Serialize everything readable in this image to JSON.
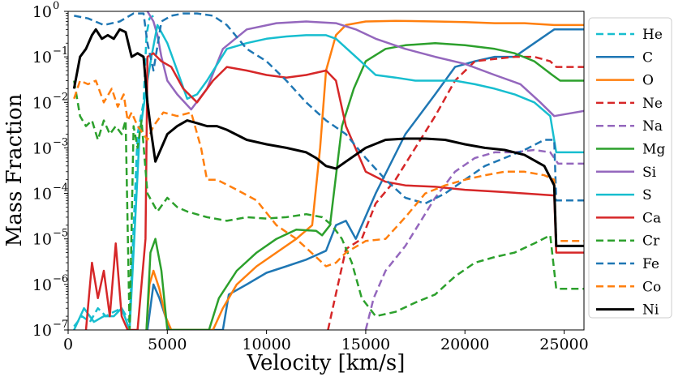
{
  "chart_data": {
    "type": "line",
    "xlabel": "Velocity [km/s]",
    "ylabel": "Mass Fraction",
    "xlim": [
      0,
      26000
    ],
    "ylim": [
      1e-07,
      1
    ],
    "yscale": "log",
    "grid": false,
    "legend_position": "right-outside",
    "x_ticks": [
      0,
      5000,
      10000,
      15000,
      20000,
      25000
    ],
    "x_tick_labels": [
      "0",
      "5000",
      "10000",
      "15000",
      "20000",
      "25000"
    ],
    "y_tick_exponents": [
      -7,
      -6,
      -5,
      -4,
      -3,
      -2,
      -1,
      0
    ],
    "y_tick_labels": [
      "10",
      "10",
      "10",
      "10",
      "10",
      "10",
      "10",
      "10"
    ],
    "y_tick_sups": [
      "−7",
      "−6",
      "−5",
      "−4",
      "−3",
      "−2",
      "−1",
      "0"
    ],
    "series": [
      {
        "name": "He",
        "color": "#17becf",
        "dash": true,
        "x": [
          300,
          700,
          1100,
          1500,
          1900,
          2300,
          2700,
          3100,
          3500,
          3800,
          3950,
          4100,
          4300
        ],
        "y": [
          1.2e-07,
          2e-07,
          1.5e-07,
          3e-07,
          2e-07,
          2.5e-07,
          3e-07,
          1.5e-07,
          0.002,
          0.01,
          0.3,
          0.7,
          0.8
        ]
      },
      {
        "name": "C",
        "color": "#1f77b4",
        "dash": false,
        "x": [
          4000,
          4300,
          4600,
          4900,
          5100,
          7800,
          8100,
          9000,
          10000,
          11000,
          12000,
          13000,
          13500,
          14000,
          14500,
          15500,
          17000,
          18500,
          19500,
          20500,
          21500,
          22500,
          23500,
          24500,
          26000
        ],
        "y": [
          1e-07,
          1e-06,
          5e-07,
          2e-07,
          1e-07,
          1e-07,
          6e-07,
          1e-06,
          1.8e-06,
          2.5e-06,
          3.5e-06,
          5.5e-06,
          2e-05,
          2.5e-05,
          1e-05,
          0.0001,
          0.002,
          0.015,
          0.06,
          0.08,
          0.1,
          0.1,
          0.2,
          0.4,
          0.4
        ]
      },
      {
        "name": "O",
        "color": "#ff7f0e",
        "dash": false,
        "x": [
          3950,
          4100,
          4300,
          4600,
          4900,
          5200,
          7300,
          7800,
          8500,
          9500,
          10500,
          11500,
          12300,
          12700,
          13000,
          13500,
          14000,
          15000,
          16500,
          18500,
          20000,
          21500,
          23000,
          24500,
          26000
        ],
        "y": [
          1e-07,
          1e-06,
          2e-06,
          8e-07,
          2e-07,
          1e-07,
          1e-07,
          3e-07,
          1e-06,
          2.5e-06,
          5e-06,
          1e-05,
          2e-05,
          0.001,
          0.05,
          0.3,
          0.5,
          0.6,
          0.62,
          0.6,
          0.58,
          0.55,
          0.55,
          0.5,
          0.5
        ]
      },
      {
        "name": "Ne",
        "color": "#d62728",
        "dash": true,
        "x": [
          13100,
          13400,
          14000,
          14800,
          15500,
          16500,
          17500,
          18500,
          19500,
          20500,
          21500,
          22500,
          23500,
          24300,
          24600,
          26000
        ],
        "y": [
          1e-07,
          4e-07,
          6e-06,
          1e-05,
          6e-05,
          0.0002,
          0.001,
          0.005,
          0.03,
          0.08,
          0.09,
          0.1,
          0.1,
          0.08,
          0.06,
          0.06
        ]
      },
      {
        "name": "Na",
        "color": "#9467bd",
        "dash": true,
        "x": [
          15000,
          15400,
          16000,
          17000,
          18500,
          19500,
          20500,
          21500,
          22500,
          23500,
          24300,
          24700,
          26000
        ],
        "y": [
          1e-07,
          5e-07,
          2e-06,
          7e-06,
          8e-05,
          0.0003,
          0.0006,
          0.0008,
          0.0008,
          0.0009,
          0.0008,
          0.00045,
          0.00045
        ]
      },
      {
        "name": "Mg",
        "color": "#2ca02c",
        "dash": false,
        "x": [
          3950,
          4150,
          4400,
          4700,
          5000,
          7100,
          7600,
          8500,
          9500,
          10500,
          11500,
          12500,
          12800,
          13200,
          13800,
          14400,
          15000,
          16000,
          17000,
          18500,
          20000,
          21500,
          22500,
          23500,
          24400,
          24800,
          26000
        ],
        "y": [
          1e-07,
          5e-06,
          1e-05,
          2e-06,
          1e-07,
          1e-07,
          5e-07,
          2e-06,
          5e-06,
          1e-05,
          1.6e-05,
          1.5e-05,
          1.2e-05,
          2e-05,
          0.003,
          0.02,
          0.08,
          0.15,
          0.18,
          0.2,
          0.18,
          0.15,
          0.12,
          0.08,
          0.04,
          0.03,
          0.03
        ]
      },
      {
        "name": "Si",
        "color": "#9467bd",
        "dash": false,
        "x": [
          4000,
          4300,
          4500,
          4700,
          5000,
          5500,
          6200,
          7000,
          7800,
          9000,
          10500,
          12000,
          13500,
          14500,
          15500,
          17000,
          18500,
          20000,
          21500,
          22800,
          23800,
          24500,
          26000
        ],
        "y": [
          1.0,
          0.6,
          0.3,
          0.1,
          0.03,
          0.015,
          0.007,
          0.02,
          0.15,
          0.4,
          0.55,
          0.6,
          0.55,
          0.4,
          0.25,
          0.15,
          0.1,
          0.07,
          0.04,
          0.025,
          0.01,
          0.005,
          0.0065
        ]
      },
      {
        "name": "S",
        "color": "#17becf",
        "dash": false,
        "x": [
          300,
          800,
          1300,
          1800,
          2300,
          2700,
          3100,
          3600,
          4000,
          4200,
          4500,
          5000,
          5500,
          6000,
          6500,
          7000,
          8000,
          9000,
          10000,
          11000,
          12000,
          13000,
          13500,
          14500,
          15500,
          16500,
          17500,
          18500,
          19500,
          20500,
          21500,
          22500,
          23500,
          24300,
          24600,
          26000
        ],
        "y": [
          1e-07,
          3e-07,
          1.5e-07,
          2e-07,
          2e-07,
          3e-07,
          1e-07,
          0.002,
          0.03,
          0.1,
          0.5,
          0.2,
          0.05,
          0.012,
          0.015,
          0.03,
          0.15,
          0.2,
          0.25,
          0.28,
          0.3,
          0.3,
          0.25,
          0.1,
          0.04,
          0.035,
          0.03,
          0.03,
          0.03,
          0.025,
          0.02,
          0.015,
          0.01,
          0.005,
          0.0008,
          0.0008
        ]
      },
      {
        "name": "Ca",
        "color": "#d62728",
        "dash": false,
        "x": [
          900,
          1200,
          1500,
          1800,
          2100,
          2400,
          2700,
          3000,
          3500,
          3900,
          4000,
          4300,
          4700,
          5200,
          5800,
          6500,
          7300,
          8000,
          9000,
          10000,
          11000,
          12000,
          13000,
          13500,
          14000,
          15000,
          16000,
          17000,
          18500,
          20000,
          21500,
          23000,
          24500,
          24600,
          26000
        ],
        "y": [
          1e-07,
          3e-06,
          5e-07,
          2e-06,
          2e-07,
          8e-06,
          2e-07,
          1e-07,
          1e-07,
          1e-05,
          0.1,
          0.12,
          0.08,
          0.06,
          0.02,
          0.01,
          0.03,
          0.06,
          0.05,
          0.04,
          0.035,
          0.04,
          0.05,
          0.03,
          0.003,
          0.0003,
          0.00018,
          0.00015,
          0.00014,
          0.00012,
          0.00011,
          0.0001,
          9e-05,
          5e-06,
          5e-06
        ]
      },
      {
        "name": "Cr",
        "color": "#2ca02c",
        "dash": true,
        "x": [
          300,
          600,
          900,
          1200,
          1500,
          1800,
          2100,
          2400,
          2700,
          2900,
          3100,
          3300,
          3500,
          3700,
          4000,
          4500,
          5000,
          5500,
          6000,
          7000,
          8000,
          9000,
          10000,
          11000,
          12000,
          12800,
          13300,
          13800,
          14300,
          14800,
          15500,
          16500,
          17500,
          18500,
          19500,
          20500,
          21500,
          22500,
          23500,
          24300,
          24600,
          26000
        ],
        "y": [
          0.03,
          0.005,
          0.003,
          0.004,
          0.0015,
          0.004,
          0.002,
          0.003,
          0.002,
          0.004,
          1e-07,
          0.003,
          0.001,
          0.004,
          0.0001,
          4e-05,
          8e-05,
          5e-05,
          4e-05,
          3e-05,
          2.5e-05,
          3e-05,
          2.8e-05,
          3e-05,
          3.5e-05,
          3e-05,
          2e-05,
          1e-05,
          3e-06,
          5e-07,
          2e-07,
          2.5e-07,
          4e-07,
          6e-07,
          1.5e-06,
          3e-06,
          4e-06,
          5e-06,
          8e-06,
          1.2e-05,
          8e-07,
          8e-07
        ]
      },
      {
        "name": "Fe",
        "color": "#1f77b4",
        "dash": true,
        "x": [
          300,
          1000,
          1800,
          2600,
          3300,
          3800,
          4000,
          4300,
          4700,
          5200,
          5800,
          6500,
          7300,
          8000,
          9000,
          10000,
          11000,
          12000,
          13000,
          14000,
          15000,
          16000,
          17000,
          18000,
          19000,
          20000,
          21000,
          22000,
          23000,
          24000,
          24500,
          24600,
          26000
        ],
        "y": [
          0.8,
          0.7,
          0.5,
          0.6,
          0.9,
          0.9,
          0.2,
          0.05,
          0.6,
          0.8,
          0.9,
          0.9,
          0.8,
          0.5,
          0.15,
          0.08,
          0.03,
          0.01,
          0.004,
          0.002,
          0.0006,
          0.0002,
          8e-05,
          6e-05,
          0.0001,
          0.0002,
          0.0004,
          0.0006,
          0.0009,
          0.0015,
          0.0015,
          7e-05,
          7e-05
        ]
      },
      {
        "name": "Co",
        "color": "#ff7f0e",
        "dash": true,
        "x": [
          300,
          600,
          1000,
          1400,
          1800,
          2200,
          2500,
          2800,
          3000,
          3200,
          3500,
          3800,
          4000,
          4300,
          4800,
          5500,
          6200,
          6700,
          7000,
          7500,
          8500,
          9500,
          10500,
          11500,
          12500,
          13000,
          13500,
          14000,
          15000,
          16000,
          17000,
          18000,
          19000,
          20000,
          21000,
          22000,
          23000,
          24000,
          24500,
          24600,
          26000
        ],
        "y": [
          0.012,
          0.03,
          0.025,
          0.03,
          0.01,
          0.02,
          0.008,
          0.015,
          0.004,
          0.006,
          0.003,
          0.002,
          0.0015,
          0.003,
          0.006,
          0.005,
          0.006,
          0.001,
          0.0002,
          0.0002,
          0.00012,
          7e-05,
          2e-05,
          1e-05,
          4e-06,
          2.5e-06,
          3e-06,
          5e-06,
          9e-06,
          1e-05,
          3e-05,
          0.0001,
          0.00015,
          0.0002,
          0.00025,
          0.0003,
          0.0003,
          0.00025,
          0.0002,
          9e-06,
          9e-06
        ]
      },
      {
        "name": "Ni",
        "color": "#000000",
        "dash": false,
        "x": [
          300,
          600,
          900,
          1200,
          1400,
          1700,
          2000,
          2300,
          2600,
          2900,
          3200,
          3500,
          3800,
          4000,
          4200,
          4400,
          4700,
          5000,
          5500,
          6000,
          6500,
          7000,
          7500,
          8000,
          9000,
          10000,
          11000,
          12000,
          12500,
          13000,
          13500,
          14000,
          15000,
          16000,
          17000,
          18000,
          19000,
          20000,
          21000,
          22000,
          23000,
          24000,
          24500,
          24600,
          26000
        ],
        "y": [
          0.02,
          0.1,
          0.15,
          0.3,
          0.4,
          0.25,
          0.3,
          0.25,
          0.4,
          0.35,
          0.1,
          0.12,
          0.1,
          0.01,
          0.002,
          0.0005,
          0.001,
          0.002,
          0.003,
          0.004,
          0.0035,
          0.003,
          0.003,
          0.0025,
          0.0015,
          0.0012,
          0.001,
          0.0008,
          0.0006,
          0.0004,
          0.00035,
          0.0005,
          0.001,
          0.0015,
          0.0016,
          0.0016,
          0.0015,
          0.0012,
          0.001,
          0.0009,
          0.0007,
          0.0004,
          0.00015,
          7e-06,
          7e-06
        ]
      }
    ]
  }
}
